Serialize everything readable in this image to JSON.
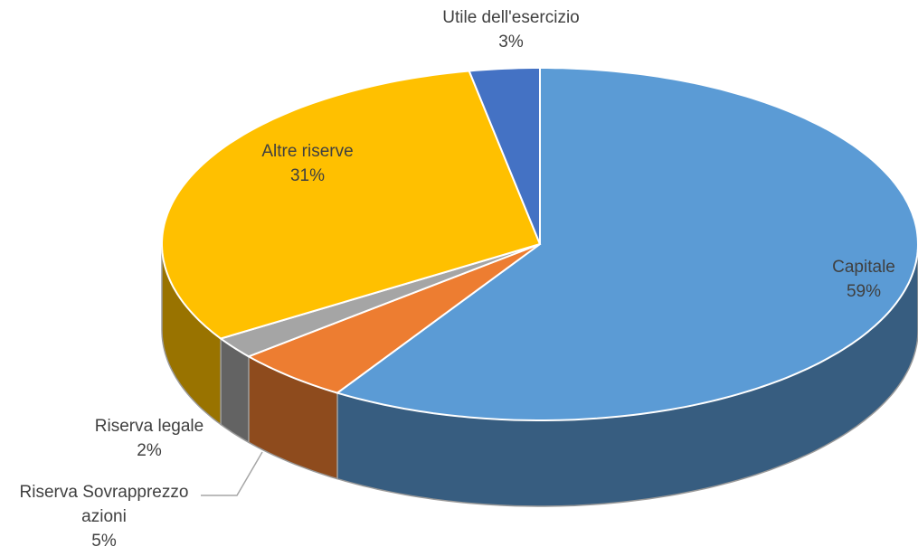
{
  "chart_data": {
    "type": "pie",
    "categories": [
      "Capitale",
      "Riserva Sovrapprezzo azioni",
      "Riserva legale",
      "Altre riserve",
      "Utile dell'esercizio"
    ],
    "values": [
      59,
      5,
      2,
      31,
      3
    ],
    "value_labels": [
      "59%",
      "5%",
      "2%",
      "31%",
      "3%"
    ],
    "colors": [
      "#5b9bd5",
      "#ed7d31",
      "#a5a5a5",
      "#ffc000",
      "#4472c4"
    ]
  }
}
